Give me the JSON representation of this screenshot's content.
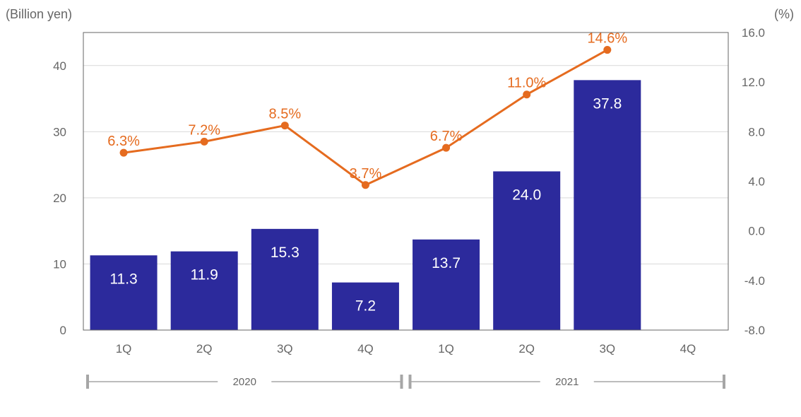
{
  "colors": {
    "bar": "#2c2a9c",
    "line": "#e56b1f",
    "grid": "#d9d9d9",
    "axis": "#666666",
    "bracket": "#a6a6a6",
    "bar_label": "#ffffff"
  },
  "chart_data": {
    "type": "bar",
    "categories": [
      "1Q",
      "2Q",
      "3Q",
      "4Q",
      "1Q",
      "2Q",
      "3Q",
      "4Q"
    ],
    "groups": [
      {
        "label": "2020",
        "categories": [
          "1Q",
          "2Q",
          "3Q",
          "4Q"
        ]
      },
      {
        "label": "2021",
        "categories": [
          "1Q",
          "2Q",
          "3Q",
          "4Q"
        ]
      }
    ],
    "left_axis": {
      "unit_label": "(Billion yen)",
      "ylim": [
        0,
        45
      ],
      "ticks": [
        0,
        10,
        20,
        30,
        40
      ],
      "tick_labels": [
        "0",
        "10",
        "20",
        "30",
        "40"
      ]
    },
    "right_axis": {
      "unit_label": "(%)",
      "ylim": [
        -8.0,
        16.0
      ],
      "ticks": [
        -8.0,
        -4.0,
        0.0,
        4.0,
        8.0,
        12.0,
        16.0
      ],
      "tick_labels": [
        "-8.0",
        "-4.0",
        "0.0",
        "4.0",
        "8.0",
        "12.0",
        "16.0"
      ]
    },
    "series": [
      {
        "type": "bar",
        "axis": "left",
        "values": [
          11.3,
          11.9,
          15.3,
          7.2,
          13.7,
          24.0,
          37.8,
          null
        ],
        "labels": [
          "11.3",
          "11.9",
          "15.3",
          "7.2",
          "13.7",
          "24.0",
          "37.8",
          ""
        ]
      },
      {
        "type": "line",
        "axis": "right",
        "values": [
          6.3,
          7.2,
          8.5,
          3.7,
          6.7,
          11.0,
          14.6,
          null
        ],
        "labels": [
          "6.3%",
          "7.2%",
          "8.5%",
          "3.7%",
          "6.7%",
          "11.0%",
          "14.6%",
          ""
        ]
      }
    ],
    "grid": true,
    "legend": "none"
  }
}
